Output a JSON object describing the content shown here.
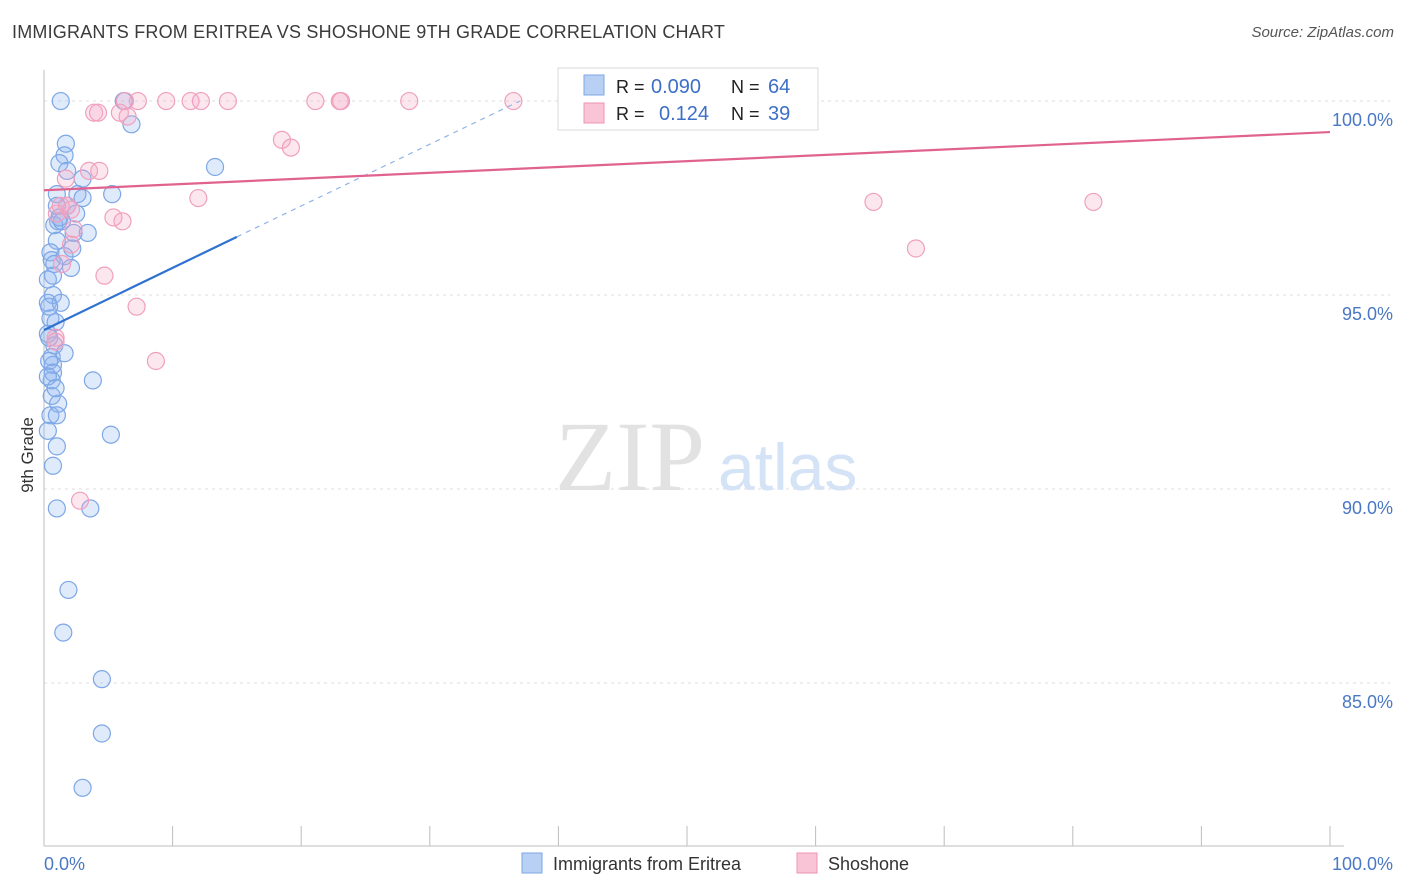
{
  "title": "IMMIGRANTS FROM ERITREA VS SHOSHONE 9TH GRADE CORRELATION CHART",
  "source": "Source: ZipAtlas.com",
  "watermark": {
    "zip": "ZIP",
    "atlas": "atlas"
  },
  "colors": {
    "blue": "#6a9de8",
    "blue_line": "#2f72d0",
    "pink": "#f093b3",
    "pink_line": "#e0628f",
    "tick_text": "#4a78c4"
  },
  "legend_box": {
    "rows": [
      {
        "r_label": "R = ",
        "r_value": "0.090",
        "n_label": "N = ",
        "n_value": "64"
      },
      {
        "r_label": "R = ",
        "r_value": "0.124",
        "n_label": "N = ",
        "n_value": "39"
      }
    ]
  },
  "chart_data": {
    "type": "scatter",
    "xlabel": "",
    "ylabel": "9th Grade",
    "xlim": [
      0,
      100
    ],
    "ylim": [
      80.8,
      100.8
    ],
    "x_tick_labels": [
      "0.0%",
      "100.0%"
    ],
    "y_ticks": [
      {
        "value": 100,
        "label": "100.0%"
      },
      {
        "value": 95,
        "label": "95.0%"
      },
      {
        "value": 90,
        "label": "90.0%"
      },
      {
        "value": 85,
        "label": "85.0%"
      }
    ],
    "legend": [
      "Immigrants from Eritrea",
      "Shoshone"
    ],
    "grid": true,
    "series": [
      {
        "name": "Immigrants from Eritrea",
        "color": "#6a9de8",
        "trend": {
          "x": [
            0.0,
            15.0
          ],
          "y": [
            94.1,
            96.5
          ],
          "dashed_to": [
            37.0,
            100.0
          ]
        },
        "points": [
          [
            1.3,
            100.0
          ],
          [
            6.2,
            100.0
          ],
          [
            6.8,
            99.4
          ],
          [
            1.7,
            98.9
          ],
          [
            1.6,
            98.6
          ],
          [
            1.2,
            98.4
          ],
          [
            1.8,
            98.2
          ],
          [
            3.0,
            98.0
          ],
          [
            13.3,
            98.3
          ],
          [
            1.0,
            97.6
          ],
          [
            2.6,
            97.6
          ],
          [
            3.0,
            97.5
          ],
          [
            5.3,
            97.6
          ],
          [
            1.0,
            97.3
          ],
          [
            1.8,
            97.3
          ],
          [
            1.1,
            96.9
          ],
          [
            0.8,
            96.8
          ],
          [
            1.4,
            96.9
          ],
          [
            2.3,
            96.6
          ],
          [
            3.4,
            96.6
          ],
          [
            1.0,
            96.4
          ],
          [
            0.5,
            96.1
          ],
          [
            0.6,
            95.9
          ],
          [
            1.6,
            96.0
          ],
          [
            2.1,
            95.7
          ],
          [
            0.7,
            95.5
          ],
          [
            0.3,
            95.4
          ],
          [
            0.7,
            95.0
          ],
          [
            0.3,
            94.8
          ],
          [
            1.3,
            94.8
          ],
          [
            0.5,
            94.4
          ],
          [
            0.9,
            94.3
          ],
          [
            0.3,
            94.0
          ],
          [
            0.8,
            93.7
          ],
          [
            0.6,
            93.4
          ],
          [
            1.6,
            93.5
          ],
          [
            0.7,
            93.2
          ],
          [
            0.4,
            93.3
          ],
          [
            0.7,
            93.0
          ],
          [
            0.6,
            92.8
          ],
          [
            0.3,
            92.9
          ],
          [
            3.8,
            92.8
          ],
          [
            0.6,
            92.4
          ],
          [
            1.1,
            92.2
          ],
          [
            0.5,
            91.9
          ],
          [
            1.0,
            91.9
          ],
          [
            0.3,
            91.5
          ],
          [
            5.2,
            91.4
          ],
          [
            1.0,
            91.1
          ],
          [
            0.7,
            90.6
          ],
          [
            1.0,
            89.5
          ],
          [
            3.6,
            89.5
          ],
          [
            1.9,
            87.4
          ],
          [
            1.5,
            86.3
          ],
          [
            4.5,
            85.1
          ],
          [
            4.5,
            83.7
          ],
          [
            3.0,
            82.3
          ],
          [
            0.4,
            94.7
          ],
          [
            0.8,
            95.8
          ],
          [
            2.2,
            96.2
          ],
          [
            0.4,
            93.9
          ],
          [
            1.2,
            97.0
          ],
          [
            0.9,
            92.6
          ],
          [
            2.5,
            97.1
          ]
        ]
      },
      {
        "name": "Shoshone",
        "color": "#f093b3",
        "trend": {
          "x": [
            0.0,
            100.0
          ],
          "y": [
            97.7,
            99.2
          ]
        },
        "points": [
          [
            7.3,
            100.0
          ],
          [
            6.3,
            100.0
          ],
          [
            9.5,
            100.0
          ],
          [
            11.4,
            100.0
          ],
          [
            12.2,
            100.0
          ],
          [
            14.3,
            100.0
          ],
          [
            21.1,
            100.0
          ],
          [
            23.0,
            100.0
          ],
          [
            23.1,
            100.0
          ],
          [
            28.4,
            100.0
          ],
          [
            36.5,
            100.0
          ],
          [
            3.9,
            99.7
          ],
          [
            4.2,
            99.7
          ],
          [
            5.9,
            99.7
          ],
          [
            6.5,
            99.6
          ],
          [
            18.5,
            99.0
          ],
          [
            19.2,
            98.8
          ],
          [
            3.5,
            98.2
          ],
          [
            1.7,
            98.0
          ],
          [
            1.8,
            97.3
          ],
          [
            12.0,
            97.5
          ],
          [
            1.0,
            97.1
          ],
          [
            5.4,
            97.0
          ],
          [
            6.1,
            96.9
          ],
          [
            2.3,
            96.7
          ],
          [
            2.1,
            96.3
          ],
          [
            1.4,
            95.8
          ],
          [
            4.7,
            95.5
          ],
          [
            7.2,
            94.7
          ],
          [
            0.9,
            93.9
          ],
          [
            8.7,
            93.3
          ],
          [
            2.8,
            89.7
          ],
          [
            64.5,
            97.4
          ],
          [
            81.6,
            97.4
          ],
          [
            67.8,
            96.2
          ],
          [
            4.3,
            98.2
          ],
          [
            1.3,
            97.3
          ],
          [
            0.9,
            93.8
          ],
          [
            2.1,
            97.2
          ]
        ]
      }
    ]
  }
}
